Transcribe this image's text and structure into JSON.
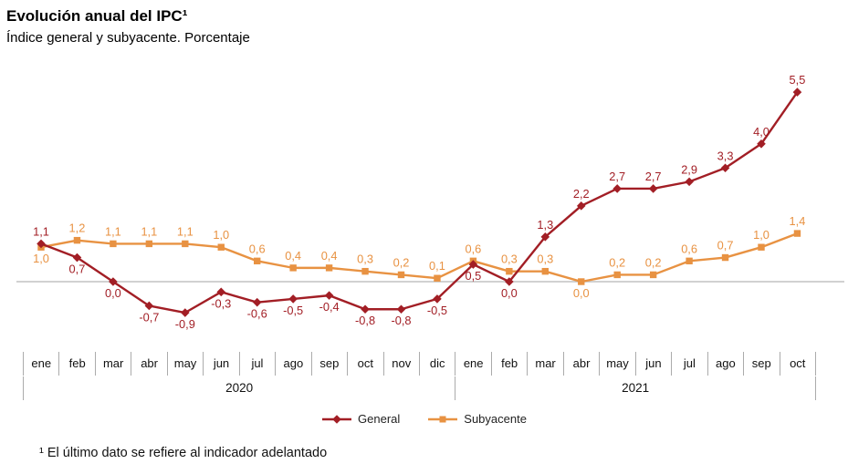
{
  "footnote": "¹ El último dato se refiere al indicador adelantado",
  "chart_data": {
    "type": "line",
    "title": "Evolución anual del IPC¹",
    "subtitle": "Índice general y subyacente. Porcentaje",
    "unit": "%",
    "grid": false,
    "y_axis_visible": false,
    "baseline": 0,
    "ylim": [
      -1.5,
      6.5
    ],
    "legend_position": "bottom",
    "categories": [
      "ene",
      "feb",
      "mar",
      "abr",
      "may",
      "jun",
      "jul",
      "ago",
      "sep",
      "oct",
      "nov",
      "dic",
      "ene",
      "feb",
      "mar",
      "abr",
      "may",
      "jun",
      "jul",
      "ago",
      "sep",
      "oct"
    ],
    "year_groups": [
      {
        "label": "2020",
        "span": 12
      },
      {
        "label": "2021",
        "span": 10
      }
    ],
    "series": [
      {
        "name": "General",
        "color": "#A21E25",
        "marker": "diamond",
        "values": [
          1.1,
          0.7,
          0.0,
          -0.7,
          -0.9,
          -0.3,
          -0.6,
          -0.5,
          -0.4,
          -0.8,
          -0.8,
          -0.5,
          0.5,
          0.0,
          1.3,
          2.2,
          2.7,
          2.7,
          2.9,
          3.3,
          4.0,
          5.5
        ],
        "labels": [
          "1,1",
          "0,7",
          "0,0",
          "-0,7",
          "-0,9",
          "-0,3",
          "-0,6",
          "-0,5",
          "-0,4",
          "-0,8",
          "-0,8",
          "-0,5",
          "0,5",
          "0,0",
          "1,3",
          "2,2",
          "2,7",
          "2,7",
          "2,9",
          "3,3",
          "4,0",
          "5,5"
        ],
        "label_pos": [
          "above",
          "below",
          "below",
          "below",
          "below",
          "below",
          "below",
          "below",
          "below",
          "below",
          "below",
          "below",
          "below",
          "below",
          "above",
          "above",
          "above",
          "above",
          "above",
          "above",
          "above",
          "above"
        ]
      },
      {
        "name": "Subyacente",
        "color": "#E89242",
        "marker": "square",
        "values": [
          1.0,
          1.2,
          1.1,
          1.1,
          1.1,
          1.0,
          0.6,
          0.4,
          0.4,
          0.3,
          0.2,
          0.1,
          0.6,
          0.3,
          0.3,
          0.0,
          0.2,
          0.2,
          0.6,
          0.7,
          1.0,
          1.4
        ],
        "labels": [
          "1,0",
          "1,2",
          "1,1",
          "1,1",
          "1,1",
          "1,0",
          "0,6",
          "0,4",
          "0,4",
          "0,3",
          "0,2",
          "0,1",
          "0,6",
          "0,3",
          "0,3",
          "0,0",
          "0,2",
          "0,2",
          "0,6",
          "0,7",
          "1,0",
          "1,4"
        ],
        "label_pos": [
          "below",
          "above",
          "above",
          "above",
          "above",
          "above",
          "above",
          "above",
          "above",
          "above",
          "above",
          "above",
          "above",
          "above",
          "above",
          "below",
          "above",
          "above",
          "above",
          "above",
          "above",
          "above"
        ]
      }
    ]
  }
}
